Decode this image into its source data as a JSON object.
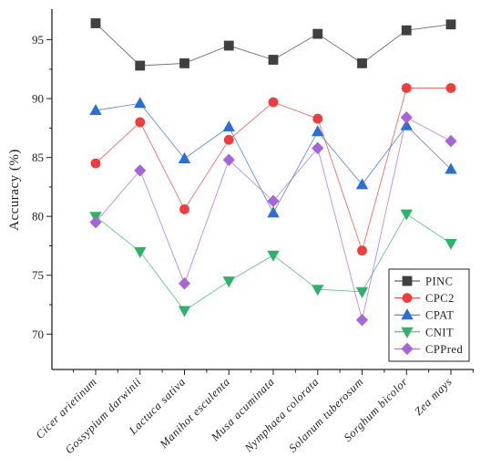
{
  "chart_data": {
    "type": "line",
    "title": "",
    "xlabel": "",
    "ylabel": "Accuracy (%)",
    "ylim": [
      67,
      97.6
    ],
    "yticks": [
      70,
      75,
      80,
      85,
      90,
      95
    ],
    "grid": false,
    "legend_position": "bottom-right",
    "categories": [
      "Cicer arietinum",
      "Gossypium darwinii",
      "Lactuca sativa",
      "Manihot esculenta",
      "Musa acuminata",
      "Nymphaea colorata",
      "Solanum tuberosum",
      "Sorghum bicolor",
      "Zea mays"
    ],
    "series": [
      {
        "name": "PINC",
        "marker": "square",
        "color": "#404040",
        "values": [
          96.4,
          92.8,
          93.0,
          94.5,
          93.3,
          95.5,
          93.0,
          95.8,
          96.3
        ]
      },
      {
        "name": "CPC2",
        "marker": "circle",
        "color": "#f03c3c",
        "values": [
          84.5,
          88.0,
          80.6,
          86.5,
          89.7,
          88.3,
          77.1,
          90.9,
          90.9
        ]
      },
      {
        "name": "CPAT",
        "marker": "triangle-up",
        "color": "#2a6fd6",
        "values": [
          89.0,
          89.6,
          84.9,
          87.6,
          80.3,
          87.2,
          82.7,
          87.7,
          84.0
        ]
      },
      {
        "name": "CNIT",
        "marker": "triangle-down",
        "color": "#2fb36b",
        "values": [
          80.0,
          77.0,
          72.0,
          74.5,
          76.7,
          73.8,
          73.6,
          80.2,
          77.7
        ]
      },
      {
        "name": "CPPred",
        "marker": "diamond",
        "color": "#a466d9",
        "values": [
          79.5,
          83.9,
          74.3,
          84.8,
          81.3,
          85.8,
          71.2,
          88.4,
          86.4
        ]
      }
    ]
  }
}
